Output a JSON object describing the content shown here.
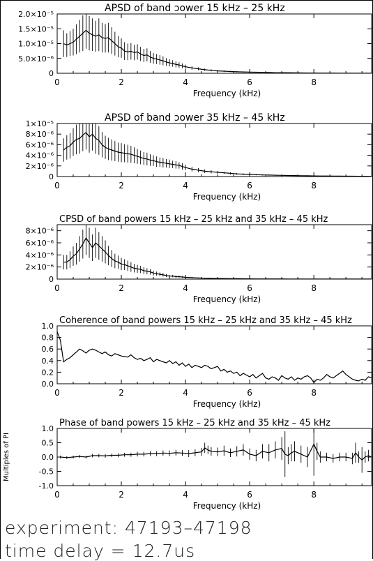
{
  "xaxis": {
    "label": "Frequency (kHz)",
    "range": [
      0,
      9.8
    ],
    "ticks": [
      0,
      2,
      4,
      6,
      8
    ],
    "tick_labels": [
      "0",
      "2",
      "4",
      "6",
      "8"
    ]
  },
  "footer": {
    "experiment": "experiment: 47193–47198",
    "delay": "time delay = 12.7us"
  },
  "chart_data": [
    {
      "type": "line",
      "title": "APSD of band ɔower 15 kHz – 25 kHz",
      "xlabel": "Frequency (kHz)",
      "ylabel": "",
      "ylim": [
        0,
        2e-05
      ],
      "yticks": [
        0,
        5e-06,
        1e-05,
        1.5e-05,
        2e-05
      ],
      "ytick_labels": [
        "0",
        "5.0×10⁻⁶",
        "1.0×10⁻⁵",
        "1.5×10⁻⁵",
        "2.0×10⁻⁵"
      ],
      "error_bars": true,
      "x": [
        0.2,
        0.3,
        0.4,
        0.5,
        0.6,
        0.7,
        0.8,
        0.9,
        1.0,
        1.1,
        1.2,
        1.3,
        1.4,
        1.5,
        1.6,
        1.7,
        1.8,
        1.9,
        2.0,
        2.1,
        2.2,
        2.3,
        2.4,
        2.5,
        2.6,
        2.7,
        2.8,
        2.9,
        3.0,
        3.1,
        3.2,
        3.3,
        3.4,
        3.5,
        3.6,
        3.7,
        3.8,
        3.9,
        4.0,
        4.2,
        4.4,
        4.6,
        4.8,
        5.0,
        5.2,
        5.4,
        5.6,
        5.8,
        6.0,
        6.2,
        6.4,
        6.6,
        6.8,
        7.0,
        7.2,
        7.4,
        7.6,
        7.8,
        8.0,
        8.2,
        8.4,
        8.6,
        8.8,
        9.0,
        9.2,
        9.4,
        9.6,
        9.8
      ],
      "values": [
        1e-05,
        9.5e-06,
        1e-05,
        1.05e-05,
        1.15e-05,
        1.25e-05,
        1.35e-05,
        1.45e-05,
        1.35e-05,
        1.3e-05,
        1.25e-05,
        1.3e-05,
        1.2e-05,
        1.18e-05,
        1.2e-05,
        1.1e-05,
        1e-05,
        9e-06,
        8.5e-06,
        7.5e-06,
        7.2e-06,
        7.4e-06,
        7e-06,
        7.2e-06,
        6.5e-06,
        6e-06,
        6.2e-06,
        5.5e-06,
        5e-06,
        4.8e-06,
        4.5e-06,
        4.2e-06,
        3.8e-06,
        3.5e-06,
        3.3e-06,
        3e-06,
        2.8e-06,
        2.5e-06,
        2.2e-06,
        1.8e-06,
        1.5e-06,
        1.2e-06,
        1e-06,
        8e-07,
        7e-07,
        6e-07,
        5e-07,
        4.5e-07,
        4e-07,
        3.5e-07,
        3e-07,
        2.5e-07,
        2e-07,
        2e-07,
        1.8e-07,
        1.5e-07,
        1.2e-07,
        1e-07,
        1e-07,
        8e-08,
        8e-08,
        6e-08,
        5e-08,
        5e-08,
        4e-08,
        4e-08,
        3e-08,
        3e-08
      ],
      "errors": [
        4.5e-06,
        4e-06,
        4.2e-06,
        4.5e-06,
        5e-06,
        5.5e-06,
        6e-06,
        6.2e-06,
        5.8e-06,
        5.5e-06,
        5.2e-06,
        5.5e-06,
        5e-06,
        4.8e-06,
        5e-06,
        4.5e-06,
        4e-06,
        3.6e-06,
        3.3e-06,
        3e-06,
        2.8e-06,
        2.8e-06,
        2.6e-06,
        2.6e-06,
        2.4e-06,
        2.2e-06,
        2.2e-06,
        2e-06,
        1.8e-06,
        1.7e-06,
        1.6e-06,
        1.5e-06,
        1.3e-06,
        1.2e-06,
        1.1e-06,
        1e-06,
        9e-07,
        8e-07,
        7e-07,
        6e-07,
        5e-07,
        4e-07,
        3.5e-07,
        3e-07,
        2.5e-07,
        2e-07,
        2e-07,
        1.5e-07,
        1.5e-07,
        1.2e-07,
        1e-07,
        1e-07,
        8e-08,
        8e-08,
        6e-08,
        5e-08,
        5e-08,
        4e-08,
        4e-08,
        3e-08,
        3e-08,
        3e-08,
        2e-08,
        2e-08,
        2e-08,
        2e-08,
        2e-08,
        2e-08
      ]
    },
    {
      "type": "line",
      "title": "APSD of band ɔower 35 kHz – 45 kHz",
      "xlabel": "Frequency (kHz)",
      "ylabel": "",
      "ylim": [
        0,
        1e-05
      ],
      "yticks": [
        0,
        2e-06,
        4e-06,
        6e-06,
        8e-06,
        1e-05
      ],
      "ytick_labels": [
        "0",
        "2×10⁻⁶",
        "4×10⁻⁶",
        "6×10⁻⁶",
        "8×10⁻⁶",
        "1×10⁻⁵"
      ],
      "error_bars": true,
      "x": [
        0.2,
        0.3,
        0.4,
        0.5,
        0.6,
        0.7,
        0.8,
        0.9,
        1.0,
        1.1,
        1.2,
        1.3,
        1.4,
        1.5,
        1.6,
        1.7,
        1.8,
        1.9,
        2.0,
        2.1,
        2.2,
        2.3,
        2.4,
        2.5,
        2.6,
        2.7,
        2.8,
        2.9,
        3.0,
        3.1,
        3.2,
        3.3,
        3.4,
        3.5,
        3.6,
        3.7,
        3.8,
        3.9,
        4.0,
        4.2,
        4.4,
        4.6,
        4.8,
        5.0,
        5.2,
        5.4,
        5.6,
        5.8,
        6.0,
        6.2,
        6.4,
        6.6,
        6.8,
        7.0,
        7.2,
        7.4,
        7.6,
        7.8,
        8.0,
        8.2,
        8.4,
        8.6,
        8.8,
        9.0,
        9.2,
        9.4,
        9.6,
        9.8
      ],
      "values": [
        5e-06,
        5.5e-06,
        5.8e-06,
        6.5e-06,
        7e-06,
        7.2e-06,
        7.8e-06,
        8.3e-06,
        7.5e-06,
        8e-06,
        7.2e-06,
        6.8e-06,
        6e-06,
        5.5e-06,
        5.2e-06,
        5e-06,
        4.8e-06,
        4.6e-06,
        4.5e-06,
        4.4e-06,
        4.3e-06,
        4.2e-06,
        4e-06,
        3.8e-06,
        3.6e-06,
        3.4e-06,
        3.3e-06,
        3.1e-06,
        3e-06,
        2.8e-06,
        2.7e-06,
        2.6e-06,
        2.5e-06,
        2.4e-06,
        2.3e-06,
        2.2e-06,
        2.1e-06,
        1.9e-06,
        1.7e-06,
        1.4e-06,
        1.2e-06,
        1e-06,
        9e-07,
        8e-07,
        7e-07,
        6e-07,
        5e-07,
        4.5e-07,
        4e-07,
        3.5e-07,
        3e-07,
        2.8e-07,
        2.5e-07,
        2.2e-07,
        2e-07,
        1.8e-07,
        1.6e-07,
        1.4e-07,
        1.2e-07,
        1e-07,
        1e-07,
        9e-08,
        8e-08,
        7e-08,
        6e-08,
        5e-08,
        5e-08,
        4e-08
      ],
      "errors": [
        2.2e-06,
        2.3e-06,
        2.4e-06,
        2.6e-06,
        2.8e-06,
        2.9e-06,
        3e-06,
        3.2e-06,
        3e-06,
        3.1e-06,
        2.9e-06,
        2.7e-06,
        2.4e-06,
        2.2e-06,
        2.1e-06,
        2e-06,
        1.9e-06,
        1.8e-06,
        1.8e-06,
        1.7e-06,
        1.7e-06,
        1.6e-06,
        1.5e-06,
        1.4e-06,
        1.3e-06,
        1.2e-06,
        1.2e-06,
        1.1e-06,
        1e-06,
        1e-06,
        9e-07,
        9e-07,
        8e-07,
        8e-07,
        7e-07,
        7e-07,
        6e-07,
        6e-07,
        5e-07,
        4.5e-07,
        4e-07,
        3.5e-07,
        3e-07,
        2.5e-07,
        2e-07,
        2e-07,
        1.8e-07,
        1.5e-07,
        1.4e-07,
        1.2e-07,
        1e-07,
        1e-07,
        8e-08,
        8e-08,
        7e-08,
        6e-08,
        6e-08,
        5e-08,
        5e-08,
        4e-08,
        4e-08,
        4e-08,
        3e-08,
        3e-08,
        3e-08,
        3e-08,
        2e-08,
        2e-08
      ]
    },
    {
      "type": "line",
      "title": "CPSD of band powers 15 kHz – 25 kHz and 35 kHz – 45 kHz",
      "xlabel": "Frequency (kHz)",
      "ylabel": "",
      "ylim": [
        0,
        9e-06
      ],
      "yticks": [
        0,
        2e-06,
        4e-06,
        6e-06,
        8e-06
      ],
      "ytick_labels": [
        "0",
        "2×10⁻⁶",
        "4×10⁻⁶",
        "6×10⁻⁶",
        "8×10⁻⁶"
      ],
      "error_bars": true,
      "x": [
        0.2,
        0.3,
        0.4,
        0.5,
        0.6,
        0.7,
        0.8,
        0.9,
        1.0,
        1.1,
        1.2,
        1.3,
        1.4,
        1.5,
        1.6,
        1.7,
        1.8,
        1.9,
        2.0,
        2.1,
        2.2,
        2.3,
        2.4,
        2.5,
        2.6,
        2.7,
        2.8,
        2.9,
        3.0,
        3.1,
        3.2,
        3.3,
        3.4,
        3.5,
        3.6,
        3.7,
        3.8,
        3.9,
        4.0,
        4.2,
        4.4,
        4.6,
        4.8,
        5.0,
        5.2,
        5.4,
        5.6,
        5.8,
        6.0,
        6.2,
        6.4,
        6.6,
        6.8,
        7.0,
        7.2,
        7.4,
        7.6,
        7.8,
        8.0,
        8.2,
        8.4,
        8.6,
        8.8,
        9.0,
        9.2,
        9.4,
        9.6,
        9.8
      ],
      "values": [
        2.8e-06,
        2.8e-06,
        3.2e-06,
        3.8e-06,
        4.2e-06,
        5e-06,
        5.8e-06,
        6.8e-06,
        6e-06,
        5.2e-06,
        6e-06,
        5.5e-06,
        5e-06,
        4.5e-06,
        3.9e-06,
        3.4e-06,
        3e-06,
        2.8e-06,
        2.5e-06,
        2.4e-06,
        2.2e-06,
        2e-06,
        1.8e-06,
        1.7e-06,
        1.6e-06,
        1.4e-06,
        1.3e-06,
        1.2e-06,
        1e-06,
        9e-07,
        8e-07,
        7e-07,
        6e-07,
        5e-07,
        5e-07,
        4e-07,
        4e-07,
        3.5e-07,
        3e-07,
        2.5e-07,
        2e-07,
        1.5e-07,
        1.2e-07,
        1e-07,
        9e-08,
        8e-08,
        7e-08,
        6e-08,
        5e-08,
        4e-08,
        4e-08,
        3e-08,
        3e-08,
        3e-08,
        2e-08,
        2e-08,
        2e-08,
        2e-08,
        2e-08,
        1e-08,
        1e-08,
        1e-08,
        1e-08,
        1e-08,
        1e-08,
        1e-08,
        1e-08,
        1e-08
      ],
      "errors": [
        1.2e-06,
        1.2e-06,
        1.4e-06,
        1.6e-06,
        1.8e-06,
        2.1e-06,
        2.4e-06,
        2.8e-06,
        2.5e-06,
        2.2e-06,
        2.5e-06,
        2.3e-06,
        2.1e-06,
        1.9e-06,
        1.6e-06,
        1.4e-06,
        1.2e-06,
        1.1e-06,
        1e-06,
        9e-07,
        8.5e-07,
        8e-07,
        7e-07,
        6.5e-07,
        6e-07,
        5.5e-07,
        5e-07,
        4.5e-07,
        4e-07,
        3.5e-07,
        3e-07,
        2.8e-07,
        2.5e-07,
        2e-07,
        2e-07,
        1.8e-07,
        1.6e-07,
        1.4e-07,
        1.2e-07,
        1e-07,
        8e-08,
        6e-08,
        5e-08,
        4e-08,
        4e-08,
        3e-08,
        3e-08,
        3e-08,
        2e-08,
        2e-08,
        2e-08,
        2e-08,
        1e-08,
        1e-08,
        1e-08,
        1e-08,
        1e-08,
        1e-08,
        1e-08,
        1e-08,
        1e-08,
        1e-08,
        1e-08,
        1e-08,
        1e-08,
        1e-08,
        1e-08,
        1e-08
      ]
    },
    {
      "type": "line",
      "title": "Coherence of band powers 15 kHz – 25 kHz and 35 kHz – 45 kHz",
      "xlabel": "Frequency (kHz)",
      "ylabel": "",
      "ylim": [
        0,
        1.0
      ],
      "yticks": [
        0,
        0.2,
        0.4,
        0.6,
        0.8,
        1.0
      ],
      "ytick_labels": [
        "0.0",
        "0.2",
        "0.4",
        "0.6",
        "0.8",
        "1.0"
      ],
      "error_bars": false,
      "x": [
        0.0,
        0.1,
        0.2,
        0.3,
        0.4,
        0.5,
        0.6,
        0.7,
        0.8,
        0.9,
        1.0,
        1.1,
        1.2,
        1.3,
        1.4,
        1.5,
        1.6,
        1.7,
        1.8,
        1.9,
        2.0,
        2.1,
        2.2,
        2.3,
        2.4,
        2.5,
        2.6,
        2.7,
        2.8,
        2.9,
        3.0,
        3.1,
        3.2,
        3.3,
        3.4,
        3.5,
        3.6,
        3.7,
        3.8,
        3.9,
        4.0,
        4.1,
        4.2,
        4.3,
        4.4,
        4.5,
        4.6,
        4.7,
        4.8,
        4.9,
        5.0,
        5.1,
        5.2,
        5.3,
        5.4,
        5.5,
        5.6,
        5.7,
        5.8,
        5.9,
        6.0,
        6.1,
        6.2,
        6.3,
        6.4,
        6.5,
        6.6,
        6.7,
        6.8,
        6.9,
        7.0,
        7.1,
        7.2,
        7.3,
        7.4,
        7.5,
        7.6,
        7.7,
        7.8,
        7.9,
        8.0,
        8.1,
        8.2,
        8.3,
        8.4,
        8.5,
        8.6,
        8.7,
        8.8,
        8.9,
        9.0,
        9.1,
        9.2,
        9.3,
        9.4,
        9.5,
        9.6,
        9.7,
        9.8
      ],
      "values": [
        0.9,
        0.75,
        0.38,
        0.42,
        0.45,
        0.5,
        0.55,
        0.6,
        0.57,
        0.53,
        0.58,
        0.6,
        0.58,
        0.55,
        0.52,
        0.55,
        0.5,
        0.48,
        0.52,
        0.5,
        0.48,
        0.47,
        0.46,
        0.5,
        0.45,
        0.42,
        0.44,
        0.4,
        0.42,
        0.45,
        0.38,
        0.42,
        0.4,
        0.38,
        0.36,
        0.4,
        0.35,
        0.38,
        0.32,
        0.36,
        0.3,
        0.34,
        0.28,
        0.32,
        0.3,
        0.28,
        0.32,
        0.3,
        0.26,
        0.28,
        0.3,
        0.22,
        0.25,
        0.2,
        0.22,
        0.18,
        0.2,
        0.14,
        0.18,
        0.15,
        0.12,
        0.16,
        0.1,
        0.14,
        0.18,
        0.1,
        0.08,
        0.12,
        0.1,
        0.06,
        0.14,
        0.1,
        0.08,
        0.12,
        0.06,
        0.1,
        0.08,
        0.12,
        0.14,
        0.1,
        0.02,
        0.08,
        0.06,
        0.1,
        0.16,
        0.12,
        0.1,
        0.14,
        0.18,
        0.22,
        0.16,
        0.12,
        0.08,
        0.06,
        0.05,
        0.08,
        0.06,
        0.12,
        0.1
      ]
    },
    {
      "type": "line",
      "title": "Phase of band powers 15 kHz – 25 kHz and 35 kHz – 45 kHz",
      "xlabel": "Frequency (kHz)",
      "ylabel": "Multiples of PI",
      "ylim": [
        -1.0,
        1.0
      ],
      "yticks": [
        -1.0,
        -0.5,
        0.0,
        0.5,
        1.0
      ],
      "ytick_labels": [
        "-1.0",
        "-0.5",
        "0.0",
        "0.5",
        "1.0"
      ],
      "error_bars": true,
      "x": [
        0.1,
        0.3,
        0.5,
        0.7,
        0.9,
        1.1,
        1.3,
        1.5,
        1.7,
        1.9,
        2.1,
        2.3,
        2.5,
        2.7,
        2.9,
        3.1,
        3.3,
        3.5,
        3.7,
        3.9,
        4.1,
        4.3,
        4.5,
        4.6,
        4.7,
        4.8,
        5.0,
        5.2,
        5.4,
        5.6,
        5.8,
        6.0,
        6.2,
        6.4,
        6.6,
        6.8,
        7.0,
        7.1,
        7.2,
        7.3,
        7.4,
        7.6,
        7.8,
        8.0,
        8.1,
        8.2,
        8.4,
        8.6,
        8.8,
        9.0,
        9.2,
        9.3,
        9.4,
        9.5,
        9.6,
        9.7,
        9.8
      ],
      "values": [
        0.0,
        -0.02,
        0.0,
        0.02,
        0.0,
        0.05,
        0.05,
        0.04,
        0.06,
        0.06,
        0.08,
        0.08,
        0.1,
        0.1,
        0.12,
        0.12,
        0.14,
        0.13,
        0.15,
        0.14,
        0.12,
        0.15,
        0.18,
        0.32,
        0.25,
        0.2,
        0.18,
        0.22,
        0.15,
        0.2,
        0.25,
        0.1,
        0.05,
        0.2,
        0.15,
        0.25,
        0.3,
        0.1,
        0.05,
        0.15,
        0.2,
        0.1,
        0.0,
        0.45,
        0.2,
        0.0,
        0.0,
        -0.05,
        0.0,
        0.0,
        -0.05,
        0.15,
        0.0,
        -0.1,
        0.0,
        0.05,
        0.0
      ],
      "errors": [
        0.05,
        0.05,
        0.05,
        0.05,
        0.05,
        0.06,
        0.06,
        0.06,
        0.06,
        0.07,
        0.07,
        0.07,
        0.08,
        0.08,
        0.08,
        0.09,
        0.09,
        0.1,
        0.1,
        0.1,
        0.12,
        0.12,
        0.14,
        0.18,
        0.15,
        0.15,
        0.15,
        0.18,
        0.15,
        0.18,
        0.2,
        0.2,
        0.2,
        0.25,
        0.3,
        0.3,
        0.4,
        0.8,
        0.3,
        0.3,
        0.35,
        0.3,
        0.35,
        1.1,
        0.3,
        0.2,
        0.15,
        0.15,
        0.15,
        0.15,
        0.2,
        0.35,
        0.2,
        0.45,
        0.2,
        0.2,
        0.2
      ]
    }
  ]
}
